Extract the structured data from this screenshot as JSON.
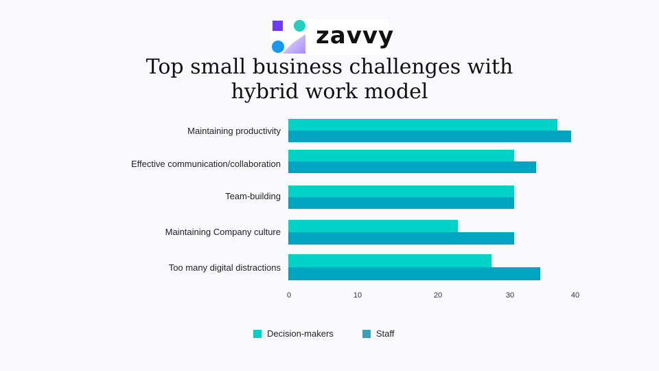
{
  "logo": {
    "wordmark": "zavvy"
  },
  "chart_data": {
    "type": "bar",
    "orientation": "horizontal",
    "title": "Top small business challenges  with hybrid work model",
    "title_lines": [
      "Top small business challenges  with",
      "hybrid work model"
    ],
    "categories": [
      "Maintaining productivity",
      "Effective communication/collaboration",
      "Team-building",
      "Maintaining Company culture",
      "Too many digital distractions"
    ],
    "series": [
      {
        "name": "Decision-makers",
        "color": "#00d2c7",
        "values": [
          37.5,
          31.5,
          31.5,
          23.6,
          28.3
        ]
      },
      {
        "name": "Staff",
        "color": "#00a6c1",
        "values": [
          39.4,
          34.5,
          31.5,
          31.5,
          35.1
        ]
      }
    ],
    "xlabel": "",
    "ylabel": "",
    "xticks": [
      "0",
      "10",
      "20",
      "30",
      "40"
    ],
    "xlim": [
      0,
      40
    ],
    "grid": false,
    "legend_position": "bottom"
  },
  "legend": {
    "decision_makers": "Decision-makers",
    "staff": "Staff",
    "staff_swatch": "#3a9fba"
  }
}
